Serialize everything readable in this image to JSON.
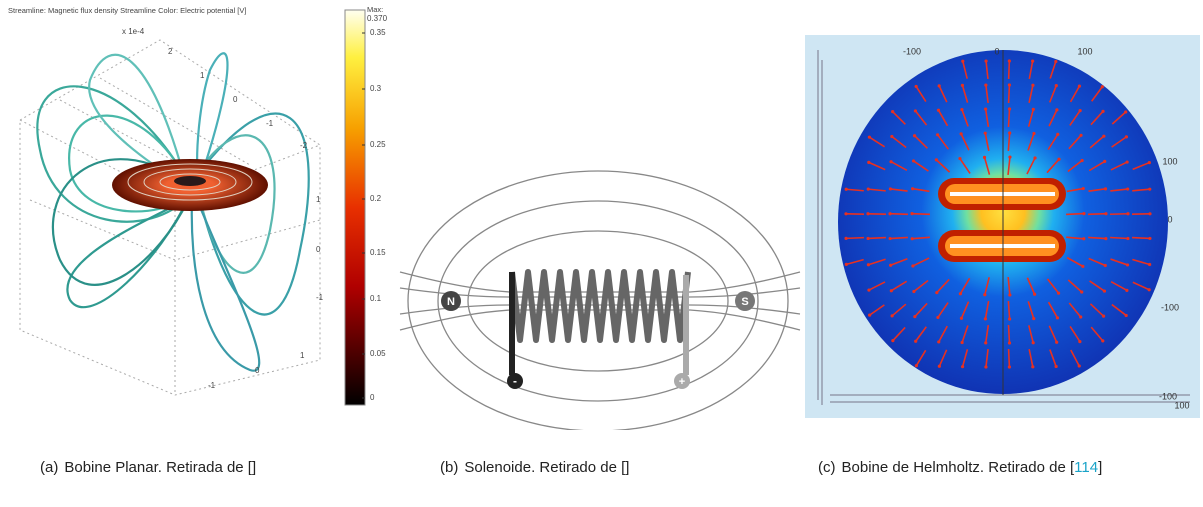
{
  "figures": [
    {
      "caption": {
        "label": "(a)",
        "text": "Bobine Planar. Retirada de []"
      },
      "image": {
        "header": "Streamline: Magnetic flux density   Streamline Color: Electric potential [V]",
        "scale_label": "x 1e-4",
        "colorbar": {
          "max_label": "Max:",
          "max": "0.370",
          "ticks": [
            "0.35",
            "0.3",
            "0.25",
            "0.2",
            "0.15",
            "0.1",
            "0.05",
            "0"
          ]
        },
        "axis_labels": [
          "2",
          "1",
          "0",
          "-1",
          "-2",
          "1",
          "0",
          "-1",
          "-1",
          "0",
          "1"
        ]
      }
    },
    {
      "caption": {
        "label": "(b)",
        "text": "Solenoide. Retirado de []"
      },
      "image": {
        "north": "N",
        "south": "S",
        "negative": "-",
        "positive": "+"
      }
    },
    {
      "caption": {
        "label": "(c)",
        "text_before": "Bobine de Helmholtz.  Retirado de [",
        "citation": "114",
        "text_after": "]"
      },
      "image": {
        "axis_labels": [
          "-100",
          "0",
          "100",
          "100",
          "0",
          "-100",
          "-100",
          "100"
        ]
      }
    }
  ]
}
